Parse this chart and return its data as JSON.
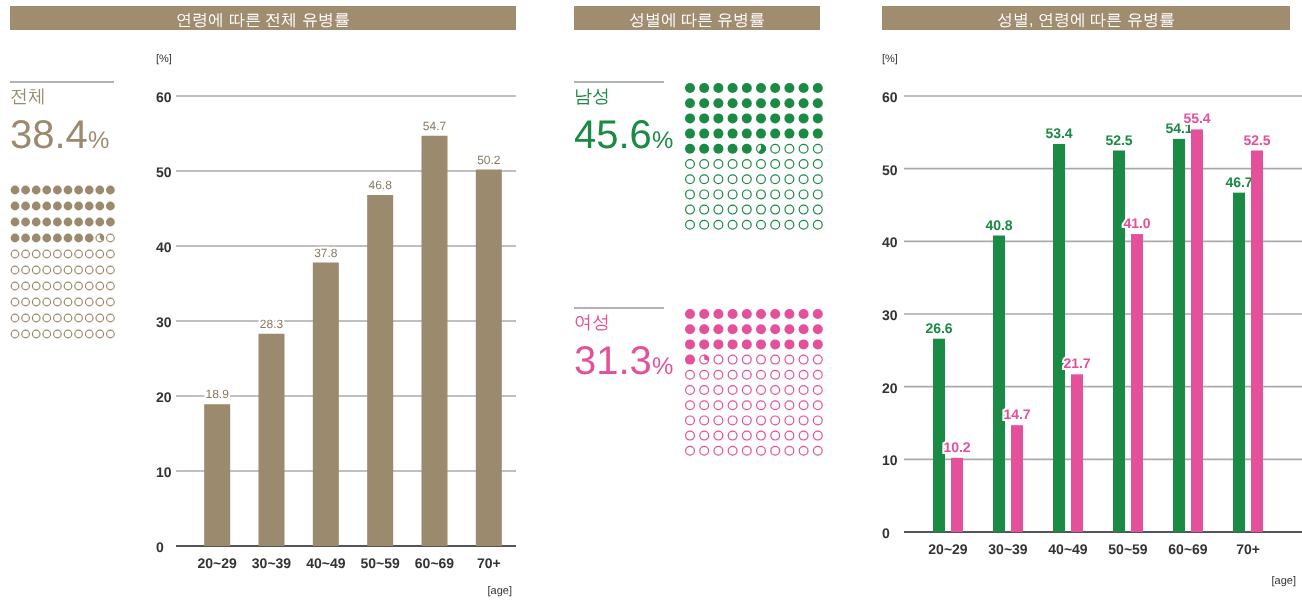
{
  "chart_data": [
    {
      "type": "other",
      "categories": [
        "전체"
      ],
      "values": [
        38.4
      ],
      "value_labels": [
        "38.4%"
      ],
      "colors": [
        "#9c8a6e"
      ]
    },
    {
      "type": "bar",
      "title": "연령에 따른 전체 유병률",
      "categories": [
        "20~29",
        "30~39",
        "40~49",
        "50~59",
        "60~69",
        "70+"
      ],
      "values": [
        18.9,
        28.3,
        37.8,
        46.8,
        54.7,
        50.2
      ],
      "color": "#9c8a6e",
      "ylim": [
        0,
        60
      ],
      "yticks": [
        0,
        10,
        20,
        30,
        40,
        50,
        60
      ],
      "ylabel": "[%]",
      "xlabel": "[age]",
      "grid": "y",
      "data_labels": true
    },
    {
      "type": "other",
      "title": "성별에 따른 유병률",
      "categories": [
        "남성",
        "여성"
      ],
      "values": [
        45.6,
        31.3
      ],
      "value_labels": [
        "45.6%",
        "31.3%"
      ],
      "colors": [
        "#1a8a45",
        "#e4509a"
      ]
    },
    {
      "type": "bar",
      "title": "성별, 연령에 따른 유병률",
      "categories": [
        "20~29",
        "30~39",
        "40~49",
        "50~59",
        "60~69",
        "70+"
      ],
      "series": [
        {
          "color": "#1a8a45",
          "values": [
            26.6,
            40.8,
            53.4,
            52.5,
            54.1,
            46.7
          ],
          "value_labels": [
            "26.6",
            "40.8",
            "53.4",
            "52.5",
            "54.1",
            "46.7"
          ]
        },
        {
          "color": "#e4509a",
          "values": [
            10.2,
            14.7,
            21.7,
            41.0,
            55.4,
            52.5
          ],
          "value_labels": [
            "10.2",
            "14.7",
            "21.7",
            "41.0",
            "55.4",
            "52.5"
          ]
        }
      ],
      "ylim": [
        0,
        60
      ],
      "yticks": [
        0,
        10,
        20,
        30,
        40,
        50,
        60
      ],
      "ylabel": "[%]",
      "xlabel": "[age]",
      "grid": "y"
    }
  ]
}
